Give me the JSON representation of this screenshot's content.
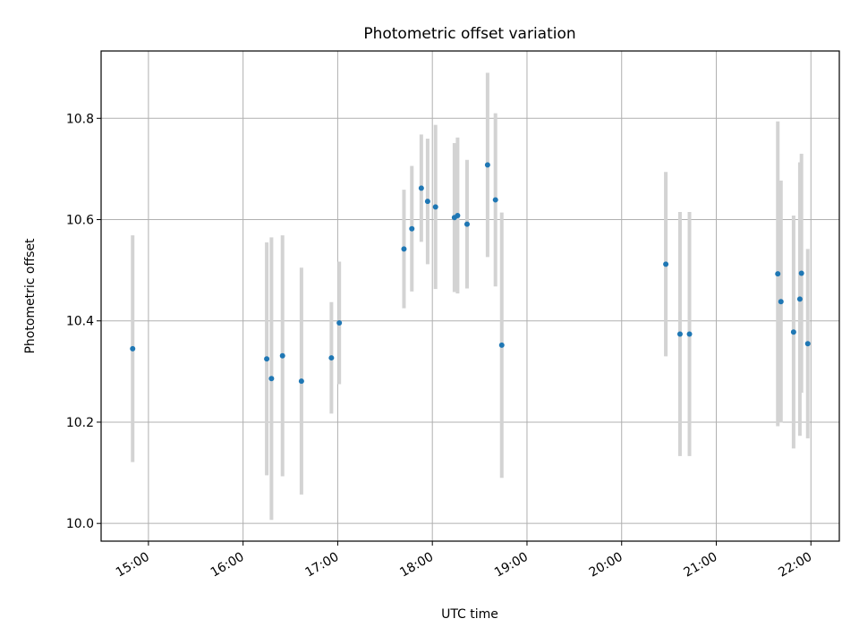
{
  "chart_data": {
    "type": "scatter",
    "title": "Photometric offset variation",
    "xlabel": "UTC time",
    "ylabel": "Photometric offset",
    "x_format": "HH:MM",
    "xlim": [
      "14:30",
      "22:18"
    ],
    "ylim": [
      9.965,
      10.933
    ],
    "x_ticks": [
      "15:00",
      "16:00",
      "17:00",
      "18:00",
      "19:00",
      "20:00",
      "21:00",
      "22:00"
    ],
    "y_ticks": [
      10.0,
      10.2,
      10.4,
      10.6,
      10.8
    ],
    "y_tick_labels": [
      "10.0",
      "10.2",
      "10.4",
      "10.6",
      "10.8"
    ],
    "grid": true,
    "marker_color": "#1f77b4",
    "errorbar_color": "#d3d3d3",
    "points": [
      {
        "x": "14:50",
        "y": 10.345,
        "err": 0.224
      },
      {
        "x": "16:15",
        "y": 10.325,
        "err": 0.23
      },
      {
        "x": "16:18",
        "y": 10.286,
        "err": 0.279
      },
      {
        "x": "16:25",
        "y": 10.331,
        "err": 0.238
      },
      {
        "x": "16:37",
        "y": 10.281,
        "err": 0.224
      },
      {
        "x": "16:56",
        "y": 10.327,
        "err": 0.11
      },
      {
        "x": "17:01",
        "y": 10.396,
        "err": 0.121
      },
      {
        "x": "17:42",
        "y": 10.542,
        "err": 0.117
      },
      {
        "x": "17:47",
        "y": 10.582,
        "err": 0.124
      },
      {
        "x": "17:53",
        "y": 10.662,
        "err": 0.106
      },
      {
        "x": "17:57",
        "y": 10.636,
        "err": 0.124
      },
      {
        "x": "18:02",
        "y": 10.625,
        "err": 0.162
      },
      {
        "x": "18:14",
        "y": 10.604,
        "err": 0.147
      },
      {
        "x": "18:16",
        "y": 10.608,
        "err": 0.154
      },
      {
        "x": "18:22",
        "y": 10.591,
        "err": 0.127
      },
      {
        "x": "18:35",
        "y": 10.708,
        "err": 0.182
      },
      {
        "x": "18:40",
        "y": 10.639,
        "err": 0.171
      },
      {
        "x": "18:44",
        "y": 10.352,
        "err": 0.262
      },
      {
        "x": "20:28",
        "y": 10.512,
        "err": 0.182
      },
      {
        "x": "20:37",
        "y": 10.374,
        "err": 0.241
      },
      {
        "x": "20:43",
        "y": 10.374,
        "err": 0.241
      },
      {
        "x": "21:39",
        "y": 10.493,
        "err": 0.301
      },
      {
        "x": "21:41",
        "y": 10.438,
        "err": 0.239
      },
      {
        "x": "21:49",
        "y": 10.378,
        "err": 0.23
      },
      {
        "x": "21:53",
        "y": 10.443,
        "err": 0.27
      },
      {
        "x": "21:54",
        "y": 10.494,
        "err": 0.236
      },
      {
        "x": "21:58",
        "y": 10.355,
        "err": 0.187
      }
    ]
  }
}
